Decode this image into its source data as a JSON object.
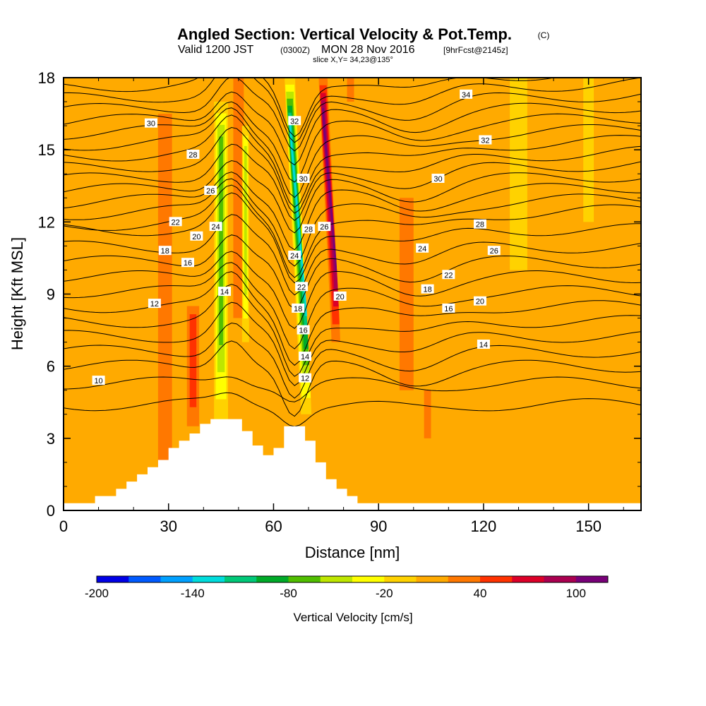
{
  "title": {
    "main": "Angled Section: Vertical Velocity & Pot.Temp.",
    "copyright": "(C)",
    "line2_a": "Valid 1200 JST",
    "line2_b": "(0300Z)",
    "line2_c": "MON 28 Nov 2016",
    "line2_d": "[9hrFcst@2145z]",
    "line3": "slice X,Y= 34,23@135°"
  },
  "chart_data": {
    "type": "heatmap",
    "xlabel": "Distance [nm]",
    "ylabel": "Height [Kft MSL]",
    "xlim": [
      0,
      165
    ],
    "ylim": [
      0,
      18
    ],
    "xticks": [
      0,
      30,
      60,
      90,
      120,
      150
    ],
    "yticks": [
      0,
      3,
      6,
      9,
      12,
      15,
      18
    ],
    "colorbar": {
      "label": "Vertical Velocity [cm/s]",
      "ticks": [
        -200,
        -140,
        -80,
        -20,
        40,
        100
      ],
      "boundaries": [
        -200,
        -180,
        -160,
        -140,
        -120,
        -100,
        -80,
        -60,
        -40,
        -20,
        0,
        20,
        40,
        60,
        80,
        100,
        120
      ],
      "colors": [
        "#0000e6",
        "#005aff",
        "#00a0ff",
        "#00dcdc",
        "#00c878",
        "#00aa28",
        "#50be00",
        "#bee600",
        "#ffff00",
        "#ffd200",
        "#ffaa00",
        "#ff7800",
        "#ff3200",
        "#dc0028",
        "#aa0050",
        "#780078"
      ],
      "background": "#ffaa00"
    },
    "velocity_features": [
      {
        "label": "updraft",
        "x": 29,
        "y0": 0.8,
        "y1": 16.5,
        "width": 4,
        "value": 30
      },
      {
        "label": "updraft",
        "x": 37,
        "y0": 3.5,
        "y1": 8.5,
        "width": 3.5,
        "value": 50
      },
      {
        "label": "updraft",
        "x": 50,
        "y0": 8,
        "y1": 18,
        "width": 3,
        "value": 30
      },
      {
        "label": "updraft",
        "x": 98,
        "y0": 5,
        "y1": 13,
        "width": 4,
        "value": 30
      },
      {
        "label": "updraft",
        "x": 104,
        "y0": 3,
        "y1": 5,
        "width": 2,
        "value": 25
      },
      {
        "label": "updraft",
        "x": 82,
        "y0": 17,
        "y1": 18,
        "width": 2,
        "value": 20
      },
      {
        "label": "updraft-strong",
        "x": 76,
        "y0": 7,
        "y1": 18,
        "width": 2.5,
        "value": 110
      },
      {
        "label": "downdraft",
        "x": 45,
        "y0": 3.5,
        "y1": 17,
        "width": 4,
        "value": -70
      },
      {
        "label": "downdraft",
        "x": 52,
        "y0": 7,
        "y1": 16,
        "width": 2,
        "value": -45
      },
      {
        "label": "downdraft",
        "x": 67,
        "y0": 4,
        "y1": 18,
        "width": 3,
        "value": -130
      },
      {
        "label": "weak-down",
        "x": 130,
        "y0": 10,
        "y1": 18,
        "width": 5,
        "value": -10
      },
      {
        "label": "weak-down",
        "x": 150,
        "y0": 12,
        "y1": 18,
        "width": 3,
        "value": -10
      }
    ],
    "theta_contours": {
      "levels": [
        10,
        11,
        12,
        13,
        14,
        15,
        16,
        17,
        18,
        19,
        20,
        21,
        22,
        23,
        24,
        25,
        26,
        27,
        28,
        29,
        30,
        31,
        32,
        33,
        34
      ],
      "labels": [
        {
          "text": "10",
          "x": 10,
          "y": 5.4
        },
        {
          "text": "12",
          "x": 26,
          "y": 8.6
        },
        {
          "text": "14",
          "x": 46,
          "y": 9.1
        },
        {
          "text": "16",
          "x": 35.5,
          "y": 10.3
        },
        {
          "text": "18",
          "x": 29,
          "y": 10.8
        },
        {
          "text": "20",
          "x": 38,
          "y": 11.4
        },
        {
          "text": "22",
          "x": 32,
          "y": 12
        },
        {
          "text": "24",
          "x": 43.5,
          "y": 11.8
        },
        {
          "text": "26",
          "x": 42,
          "y": 13.3
        },
        {
          "text": "28",
          "x": 37,
          "y": 14.8
        },
        {
          "text": "30",
          "x": 25,
          "y": 16.1
        },
        {
          "text": "32",
          "x": 66,
          "y": 16.2
        },
        {
          "text": "30",
          "x": 68.5,
          "y": 13.8
        },
        {
          "text": "28",
          "x": 70,
          "y": 11.7
        },
        {
          "text": "26",
          "x": 74.5,
          "y": 11.8
        },
        {
          "text": "24",
          "x": 66,
          "y": 10.6
        },
        {
          "text": "22",
          "x": 68,
          "y": 9.3
        },
        {
          "text": "20",
          "x": 79,
          "y": 8.9
        },
        {
          "text": "18",
          "x": 67,
          "y": 8.4
        },
        {
          "text": "16",
          "x": 68.5,
          "y": 7.5
        },
        {
          "text": "14",
          "x": 69,
          "y": 6.4
        },
        {
          "text": "12",
          "x": 69,
          "y": 5.5
        },
        {
          "text": "34",
          "x": 115,
          "y": 17.3
        },
        {
          "text": "32",
          "x": 120.5,
          "y": 15.4
        },
        {
          "text": "30",
          "x": 107,
          "y": 13.8
        },
        {
          "text": "28",
          "x": 119,
          "y": 11.9
        },
        {
          "text": "26",
          "x": 123,
          "y": 10.8
        },
        {
          "text": "24",
          "x": 102.5,
          "y": 10.9
        },
        {
          "text": "22",
          "x": 110,
          "y": 9.8
        },
        {
          "text": "20",
          "x": 119,
          "y": 8.7
        },
        {
          "text": "18",
          "x": 104,
          "y": 9.2
        },
        {
          "text": "16",
          "x": 110,
          "y": 8.4
        },
        {
          "text": "14",
          "x": 120,
          "y": 6.9
        }
      ]
    },
    "terrain": [
      [
        0,
        0.3
      ],
      [
        9,
        0.3
      ],
      [
        9,
        0.6
      ],
      [
        15,
        0.6
      ],
      [
        15,
        0.9
      ],
      [
        18,
        0.9
      ],
      [
        18,
        1.2
      ],
      [
        21,
        1.2
      ],
      [
        21,
        1.5
      ],
      [
        24,
        1.5
      ],
      [
        24,
        1.8
      ],
      [
        27,
        1.8
      ],
      [
        27,
        2.1
      ],
      [
        30,
        2.1
      ],
      [
        30,
        2.6
      ],
      [
        33,
        2.6
      ],
      [
        33,
        2.9
      ],
      [
        36,
        2.9
      ],
      [
        36,
        3.2
      ],
      [
        39,
        3.2
      ],
      [
        39,
        3.6
      ],
      [
        42,
        3.6
      ],
      [
        42,
        3.8
      ],
      [
        51,
        3.8
      ],
      [
        51,
        3.3
      ],
      [
        54,
        3.3
      ],
      [
        54,
        2.7
      ],
      [
        57,
        2.7
      ],
      [
        57,
        2.3
      ],
      [
        60,
        2.3
      ],
      [
        60,
        2.6
      ],
      [
        63,
        2.6
      ],
      [
        63,
        3.5
      ],
      [
        69,
        3.5
      ],
      [
        69,
        2.9
      ],
      [
        72,
        2.9
      ],
      [
        72,
        2.0
      ],
      [
        75,
        2.0
      ],
      [
        75,
        1.3
      ],
      [
        78,
        1.3
      ],
      [
        78,
        0.9
      ],
      [
        81,
        0.9
      ],
      [
        81,
        0.6
      ],
      [
        84,
        0.6
      ],
      [
        84,
        0.3
      ],
      [
        165,
        0.3
      ]
    ]
  }
}
